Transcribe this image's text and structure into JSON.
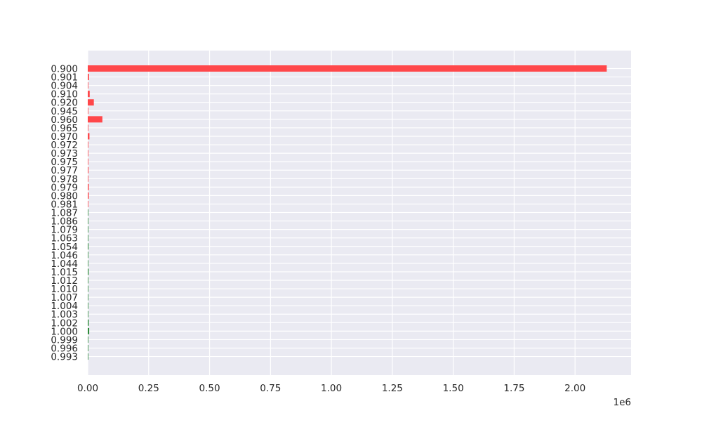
{
  "chart_data": {
    "type": "bar",
    "orientation": "horizontal",
    "title": "",
    "xlabel": "",
    "ylabel": "",
    "x_offset_text": "1e6",
    "xlim": [
      0,
      2230000
    ],
    "xticks": [
      0,
      250000,
      500000,
      750000,
      1000000,
      1250000,
      1500000,
      1750000,
      2000000
    ],
    "xtick_labels": [
      "0.00",
      "0.25",
      "0.50",
      "0.75",
      "1.00",
      "1.25",
      "1.50",
      "1.75",
      "2.00"
    ],
    "grid": true,
    "legend": "none",
    "colors": {
      "background": "#eaeaf2",
      "grid": "#ffffff",
      "red_bars": "#ff474a",
      "green_bars": "#2e8b3a"
    },
    "categories": [
      "0.900",
      "0.901",
      "0.904",
      "0.910",
      "0.920",
      "0.945",
      "0.960",
      "0.965",
      "0.970",
      "0.972",
      "0.973",
      "0.975",
      "0.977",
      "0.978",
      "0.979",
      "0.980",
      "0.981",
      "1.087",
      "1.086",
      "1.079",
      "1.063",
      "1.054",
      "1.046",
      "1.044",
      "1.015",
      "1.012",
      "1.010",
      "1.007",
      "1.004",
      "1.003",
      "1.002",
      "1.000",
      "0.999",
      "0.996",
      "0.993"
    ],
    "values": [
      2130000,
      5000,
      1500,
      8000,
      25000,
      1500,
      60000,
      1500,
      7000,
      1500,
      1500,
      1500,
      3000,
      1500,
      4000,
      4000,
      1500,
      1500,
      1500,
      1500,
      1500,
      3000,
      1500,
      1500,
      3500,
      1500,
      1500,
      1500,
      1500,
      1500,
      4000,
      6000,
      1500,
      1500,
      1500
    ],
    "bar_colors": [
      "red",
      "red",
      "red",
      "red",
      "red",
      "red",
      "red",
      "red",
      "red",
      "red",
      "red",
      "red",
      "red",
      "red",
      "red",
      "red",
      "red",
      "green",
      "green",
      "green",
      "green",
      "green",
      "green",
      "green",
      "green",
      "green",
      "green",
      "green",
      "green",
      "green",
      "green",
      "green",
      "green",
      "green",
      "green"
    ]
  }
}
